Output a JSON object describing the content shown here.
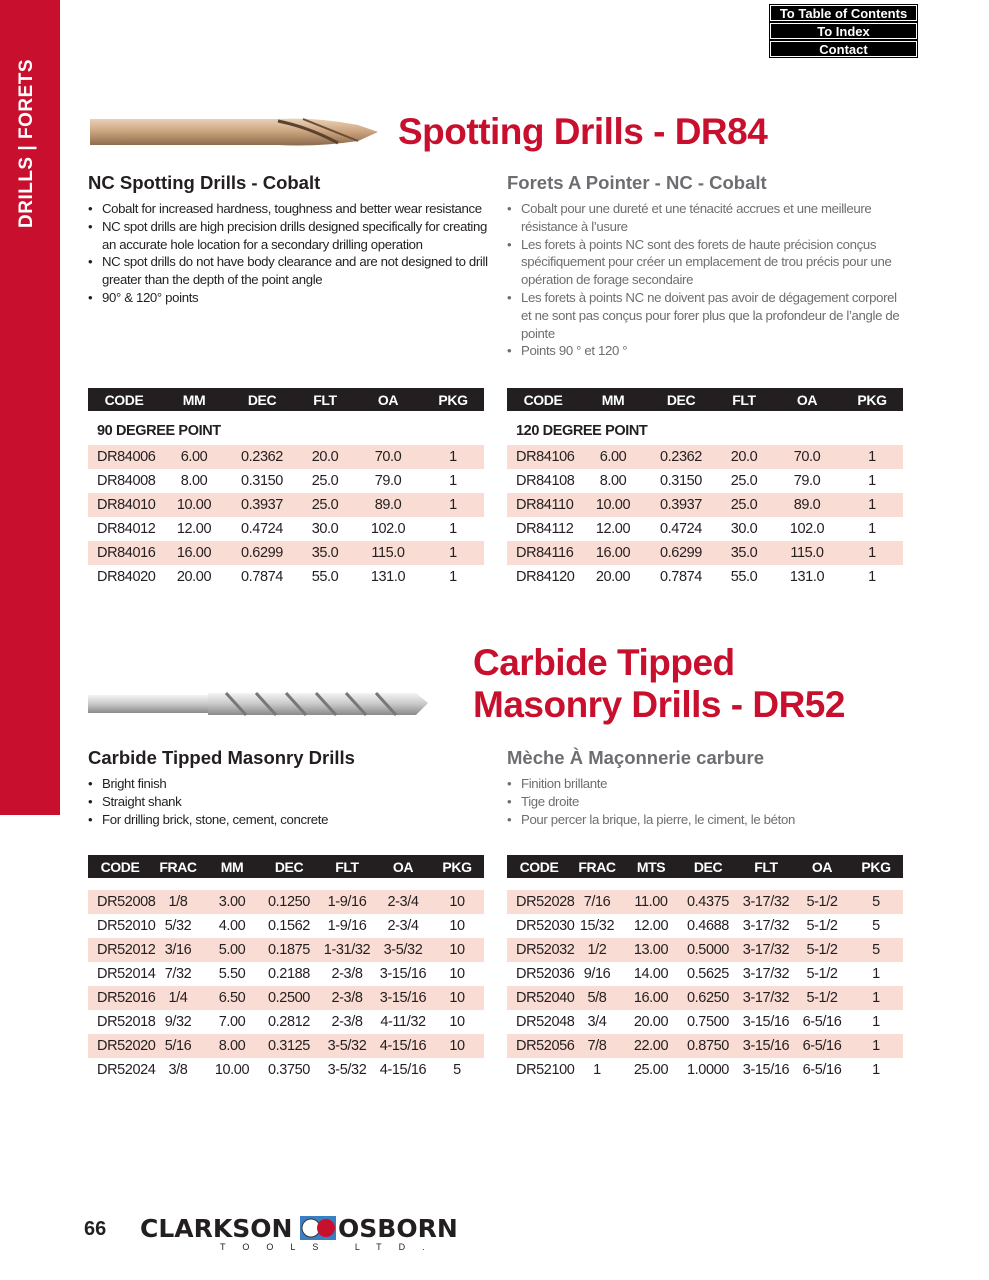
{
  "sidebar": {
    "label": "DRILLS | FORETS"
  },
  "nav": {
    "toc": "To Table of Contents",
    "index": "To Index",
    "contact": "Contact"
  },
  "colors": {
    "brand_red": "#c8102e",
    "header_bg": "#231f20",
    "row_shade": "#f9dcd3"
  },
  "spotting": {
    "title": "Spotting Drills - DR84",
    "en": {
      "heading": "NC Spotting Drills - Cobalt",
      "bullets": [
        "Cobalt for increased hardness, toughness and better wear resistance",
        "NC spot drills are high precision drills designed specifically for creating an accurate hole location for a secondary drilling operation",
        "NC spot drills do not have body clearance and are not designed to drill greater than the depth of the point angle",
        "90° & 120° points"
      ]
    },
    "fr": {
      "heading": "Forets A Pointer - NC - Cobalt",
      "bullets": [
        "Cobalt pour une dureté et une ténacité accrues et une meilleure résistance à l’usure",
        "Les forets à points NC sont des forets de haute précision conçus spécifiquement pour créer un emplacement de trou précis pour une opération de forage secondaire",
        "Les forets à points NC ne doivent pas avoir de dégagement corporel et ne sont pas conçus pour forer plus que la profondeur de l’angle de pointe",
        "Points 90 ° et 120 °"
      ]
    },
    "tables": [
      {
        "headers": [
          "CODE",
          "MM",
          "DEC",
          "FLT",
          "OA",
          "PKG"
        ],
        "subheading": "90 DEGREE POINT",
        "rows": [
          [
            "DR84006",
            "6.00",
            "0.2362",
            "20.0",
            "70.0",
            "1"
          ],
          [
            "DR84008",
            "8.00",
            "0.3150",
            "25.0",
            "79.0",
            "1"
          ],
          [
            "DR84010",
            "10.00",
            "0.3937",
            "25.0",
            "89.0",
            "1"
          ],
          [
            "DR84012",
            "12.00",
            "0.4724",
            "30.0",
            "102.0",
            "1"
          ],
          [
            "DR84016",
            "16.00",
            "0.6299",
            "35.0",
            "115.0",
            "1"
          ],
          [
            "DR84020",
            "20.00",
            "0.7874",
            "55.0",
            "131.0",
            "1"
          ]
        ]
      },
      {
        "headers": [
          "CODE",
          "MM",
          "DEC",
          "FLT",
          "OA",
          "PKG"
        ],
        "subheading": "120 DEGREE POINT",
        "rows": [
          [
            "DR84106",
            "6.00",
            "0.2362",
            "20.0",
            "70.0",
            "1"
          ],
          [
            "DR84108",
            "8.00",
            "0.3150",
            "25.0",
            "79.0",
            "1"
          ],
          [
            "DR84110",
            "10.00",
            "0.3937",
            "25.0",
            "89.0",
            "1"
          ],
          [
            "DR84112",
            "12.00",
            "0.4724",
            "30.0",
            "102.0",
            "1"
          ],
          [
            "DR84116",
            "16.00",
            "0.6299",
            "35.0",
            "115.0",
            "1"
          ],
          [
            "DR84120",
            "20.00",
            "0.7874",
            "55.0",
            "131.0",
            "1"
          ]
        ]
      }
    ]
  },
  "masonry": {
    "title_line1": "Carbide Tipped",
    "title_line2": "Masonry Drills - DR52",
    "en": {
      "heading": "Carbide Tipped Masonry Drills",
      "bullets": [
        "Bright finish",
        "Straight shank",
        "For drilling brick, stone, cement, concrete"
      ]
    },
    "fr": {
      "heading": "Mèche À Maçonnerie carbure",
      "bullets": [
        "Finition brillante",
        "Tige droite",
        "Pour percer la brique, la pierre, le ciment, le béton"
      ]
    },
    "tables": [
      {
        "headers": [
          "CODE",
          "FRAC",
          "MM",
          "DEC",
          "FLT",
          "OA",
          "PKG"
        ],
        "rows": [
          [
            "DR52008",
            "1/8",
            "3.00",
            "0.1250",
            "1-9/16",
            "2-3/4",
            "10"
          ],
          [
            "DR52010",
            "5/32",
            "4.00",
            "0.1562",
            "1-9/16",
            "2-3/4",
            "10"
          ],
          [
            "DR52012",
            "3/16",
            "5.00",
            "0.1875",
            "1-31/32",
            "3-5/32",
            "10"
          ],
          [
            "DR52014",
            "7/32",
            "5.50",
            "0.2188",
            "2-3/8",
            "3-15/16",
            "10"
          ],
          [
            "DR52016",
            "1/4",
            "6.50",
            "0.2500",
            "2-3/8",
            "3-15/16",
            "10"
          ],
          [
            "DR52018",
            "9/32",
            "7.00",
            "0.2812",
            "2-3/8",
            "4-11/32",
            "10"
          ],
          [
            "DR52020",
            "5/16",
            "8.00",
            "0.3125",
            "3-5/32",
            "4-15/16",
            "10"
          ],
          [
            "DR52024",
            "3/8",
            "10.00",
            "0.3750",
            "3-5/32",
            "4-15/16",
            "5"
          ]
        ]
      },
      {
        "headers": [
          "CODE",
          "FRAC",
          "MTS",
          "DEC",
          "FLT",
          "OA",
          "PKG"
        ],
        "rows": [
          [
            "DR52028",
            "7/16",
            "11.00",
            "0.4375",
            "3-17/32",
            "5-1/2",
            "5"
          ],
          [
            "DR52030",
            "15/32",
            "12.00",
            "0.4688",
            "3-17/32",
            "5-1/2",
            "5"
          ],
          [
            "DR52032",
            "1/2",
            "13.00",
            "0.5000",
            "3-17/32",
            "5-1/2",
            "5"
          ],
          [
            "DR52036",
            "9/16",
            "14.00",
            "0.5625",
            "3-17/32",
            "5-1/2",
            "1"
          ],
          [
            "DR52040",
            "5/8",
            "16.00",
            "0.6250",
            "3-17/32",
            "5-1/2",
            "1"
          ],
          [
            "DR52048",
            "3/4",
            "20.00",
            "0.7500",
            "3-15/16",
            "6-5/16",
            "1"
          ],
          [
            "DR52056",
            "7/8",
            "22.00",
            "0.8750",
            "3-15/16",
            "6-5/16",
            "1"
          ],
          [
            "DR52100",
            "1",
            "25.00",
            "1.0000",
            "3-15/16",
            "6-5/16",
            "1"
          ]
        ]
      }
    ]
  },
  "footer": {
    "page_number": "66",
    "logo_left": "CLARKSON",
    "logo_right": "OSBORN",
    "logo_sub": "TOOLS LTD."
  }
}
